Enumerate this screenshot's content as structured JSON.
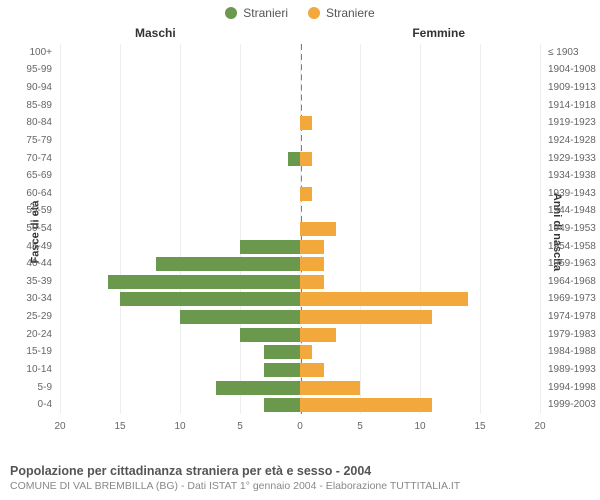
{
  "legend": {
    "male": {
      "label": "Stranieri",
      "color": "#6a994e"
    },
    "female": {
      "label": "Straniere",
      "color": "#f2a83b"
    }
  },
  "columns": {
    "left_title": "Maschi",
    "right_title": "Femmine",
    "left_axis_title": "Fasce di età",
    "right_axis_title": "Anni di nascita"
  },
  "chart": {
    "type": "population-pyramid",
    "xmax": 20,
    "xticks": [
      0,
      5,
      10,
      15,
      20
    ],
    "grid_color": "#eeeeee",
    "midline_color": "#8a8a2a",
    "male_color": "#6a994e",
    "female_color": "#f2a83b",
    "rows": [
      {
        "age": "100+",
        "birth": "≤ 1903",
        "m": 0,
        "f": 0
      },
      {
        "age": "95-99",
        "birth": "1904-1908",
        "m": 0,
        "f": 0
      },
      {
        "age": "90-94",
        "birth": "1909-1913",
        "m": 0,
        "f": 0
      },
      {
        "age": "85-89",
        "birth": "1914-1918",
        "m": 0,
        "f": 0
      },
      {
        "age": "80-84",
        "birth": "1919-1923",
        "m": 0,
        "f": 1
      },
      {
        "age": "75-79",
        "birth": "1924-1928",
        "m": 0,
        "f": 0
      },
      {
        "age": "70-74",
        "birth": "1929-1933",
        "m": 1,
        "f": 1
      },
      {
        "age": "65-69",
        "birth": "1934-1938",
        "m": 0,
        "f": 0
      },
      {
        "age": "60-64",
        "birth": "1939-1943",
        "m": 0,
        "f": 1
      },
      {
        "age": "55-59",
        "birth": "1944-1948",
        "m": 0,
        "f": 0
      },
      {
        "age": "50-54",
        "birth": "1949-1953",
        "m": 0,
        "f": 3
      },
      {
        "age": "45-49",
        "birth": "1954-1958",
        "m": 5,
        "f": 2
      },
      {
        "age": "40-44",
        "birth": "1959-1963",
        "m": 12,
        "f": 2
      },
      {
        "age": "35-39",
        "birth": "1964-1968",
        "m": 16,
        "f": 2
      },
      {
        "age": "30-34",
        "birth": "1969-1973",
        "m": 15,
        "f": 14
      },
      {
        "age": "25-29",
        "birth": "1974-1978",
        "m": 10,
        "f": 11
      },
      {
        "age": "20-24",
        "birth": "1979-1983",
        "m": 5,
        "f": 3
      },
      {
        "age": "15-19",
        "birth": "1984-1988",
        "m": 3,
        "f": 1
      },
      {
        "age": "10-14",
        "birth": "1989-1993",
        "m": 3,
        "f": 2
      },
      {
        "age": "5-9",
        "birth": "1994-1998",
        "m": 7,
        "f": 5
      },
      {
        "age": "0-4",
        "birth": "1999-2003",
        "m": 3,
        "f": 11
      }
    ]
  },
  "footer": {
    "title": "Popolazione per cittadinanza straniera per età e sesso - 2004",
    "subtitle": "COMUNE DI VAL BREMBILLA (BG) - Dati ISTAT 1° gennaio 2004 - Elaborazione TUTTITALIA.IT"
  }
}
